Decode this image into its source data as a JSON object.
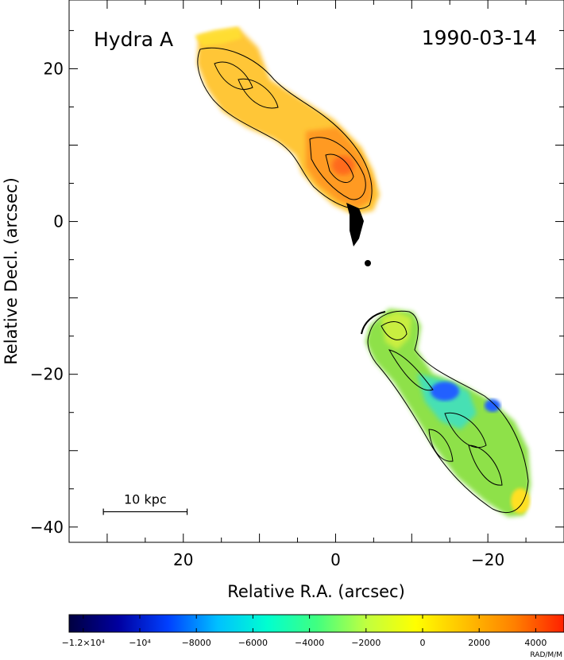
{
  "chart_data": {
    "type": "heatmap",
    "title": "Hydra A",
    "date": "1990-03-14",
    "xlabel": "Relative R.A. (arcsec)",
    "ylabel": "Relative Decl. (arcsec)",
    "xlim": [
      35,
      -30
    ],
    "ylim": [
      -42,
      29
    ],
    "xticks": [
      20,
      0,
      -20
    ],
    "xtick_labels": [
      "20",
      "0",
      "−20"
    ],
    "yticks": [
      20,
      0,
      -20,
      -40
    ],
    "ytick_labels": [
      "20",
      "0",
      "−20",
      "−40"
    ],
    "scale_bar": {
      "label": "10 kpc",
      "from_ra": 30.5,
      "to_ra": 19.5,
      "dec": -38
    },
    "colorbar": {
      "range": [
        -12500,
        5000
      ],
      "ticks": [
        -12000,
        -10000,
        -8000,
        -6000,
        -4000,
        -2000,
        0,
        2000,
        4000
      ],
      "tick_labels": [
        "−1.2×10⁴",
        "−10⁴",
        "−8000",
        "−6000",
        "−4000",
        "−2000",
        "0",
        "2000",
        "4000"
      ],
      "unit": "RAD/M/M",
      "colors": [
        "#000040",
        "#0000a0",
        "#0040ff",
        "#00c0ff",
        "#00ffd0",
        "#40ff80",
        "#c0ff40",
        "#ffff00",
        "#ffc000",
        "#ff8000",
        "#ff2000"
      ]
    },
    "lobes": [
      {
        "name": "north",
        "dominant_rm": 1500
      },
      {
        "name": "south",
        "dominant_rm": -3000
      }
    ]
  }
}
